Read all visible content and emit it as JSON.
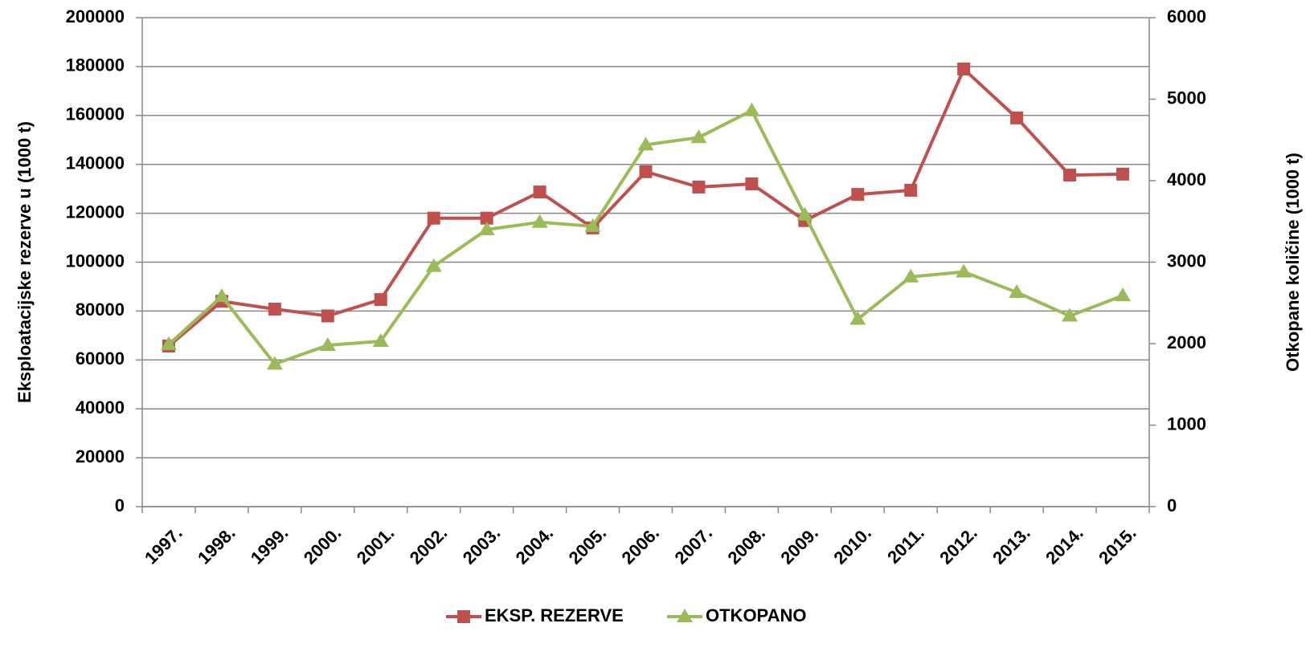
{
  "chart_data": {
    "type": "line",
    "categories": [
      "1997.",
      "1998.",
      "1999.",
      "2000.",
      "2001.",
      "2002.",
      "2003.",
      "2004.",
      "2005.",
      "2006.",
      "2007.",
      "2008.",
      "2009.",
      "2010.",
      "2011.",
      "2012.",
      "2013.",
      "2014.",
      "2015."
    ],
    "y_label": "Eksploatacijske rezerve u (1000 t)",
    "y2_label": "Otkopane količine (1000 t)",
    "ylim": [
      0,
      200000
    ],
    "yticks": [
      0,
      20000,
      40000,
      60000,
      80000,
      100000,
      120000,
      140000,
      160000,
      180000,
      200000
    ],
    "y2lim": [
      0,
      6000
    ],
    "y2ticks": [
      0,
      1000,
      2000,
      3000,
      4000,
      5000,
      6000
    ],
    "grid": true,
    "legend": "bottom",
    "series": [
      {
        "name": "EKSP. REZERVE",
        "color": "#c0504d",
        "marker": "square",
        "values": [
          65700,
          84000,
          80800,
          78000,
          84700,
          118000,
          118000,
          128700,
          114000,
          137000,
          130700,
          132000,
          117000,
          127700,
          129400,
          179000,
          159000,
          135600,
          136000
        ]
      },
      {
        "name": "OTKOPANO",
        "color": "#9bbb59",
        "marker": "triangle",
        "axis": "y2",
        "values": [
          1990,
          2580,
          1750,
          1980,
          2030,
          2950,
          3400,
          3490,
          3440,
          4440,
          4530,
          4860,
          3580,
          2300,
          2820,
          2880,
          2630,
          2340,
          2590
        ]
      }
    ]
  }
}
